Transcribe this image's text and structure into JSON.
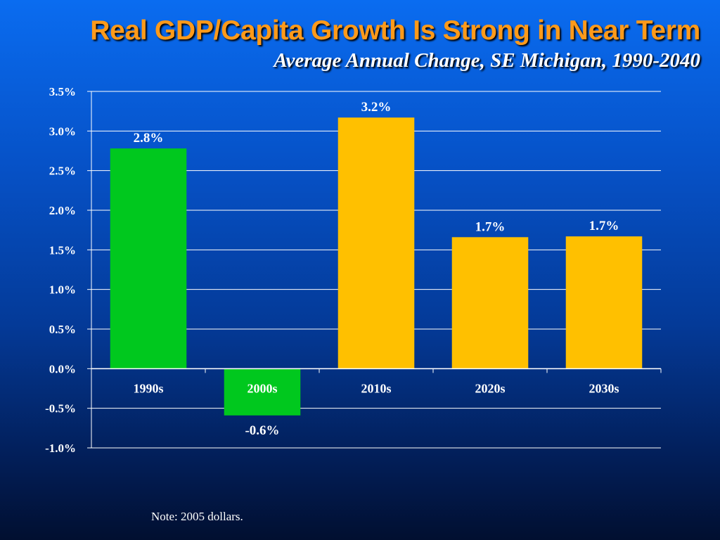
{
  "title": "Real GDP/Capita Growth Is Strong in Near Term",
  "subtitle": "Average Annual Change, SE Michigan, 1990-2040",
  "note": "Note: 2005 dollars.",
  "chart_data": {
    "type": "bar",
    "categories": [
      "1990s",
      "2000s",
      "2010s",
      "2020s",
      "2030s"
    ],
    "values": [
      2.78,
      -0.59,
      3.17,
      1.66,
      1.67
    ],
    "data_labels": [
      "2.8%",
      "-0.6%",
      "3.2%",
      "1.7%",
      "1.7%"
    ],
    "bar_colors": [
      "#00c81e",
      "#00c81e",
      "#ffc000",
      "#ffc000",
      "#ffc000"
    ],
    "ylim": [
      -1.0,
      3.5
    ],
    "yticks": [
      3.5,
      3.0,
      2.5,
      2.0,
      1.5,
      1.0,
      0.5,
      0.0,
      -0.5,
      -1.0
    ],
    "ytick_labels": [
      "3.5%",
      "3.0%",
      "2.5%",
      "2.0%",
      "1.5%",
      "1.0%",
      "0.5%",
      "0.0%",
      "-0.5%",
      "-1.0%"
    ],
    "grid": true,
    "legend": "none",
    "xlabel": "",
    "ylabel": ""
  },
  "colors": {
    "title": "#ff9a1a",
    "text": "#ffffff",
    "grid": "#ffffff"
  }
}
